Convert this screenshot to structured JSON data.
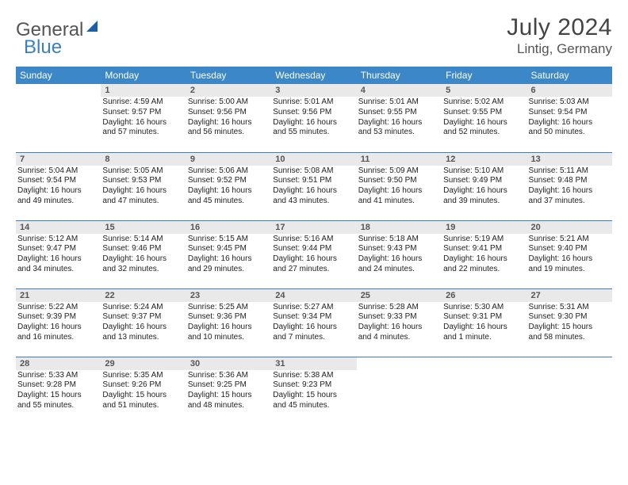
{
  "brand": {
    "part1": "General",
    "part2": "Blue"
  },
  "title": "July 2024",
  "location": "Lintig, Germany",
  "header_bg": "#3b87c8",
  "border_color": "#3b7fbf",
  "daynum_bg": "#e9e9e9",
  "weekdays": [
    "Sunday",
    "Monday",
    "Tuesday",
    "Wednesday",
    "Thursday",
    "Friday",
    "Saturday"
  ],
  "weeks": [
    [
      null,
      {
        "n": "1",
        "sr": "Sunrise: 4:59 AM",
        "ss": "Sunset: 9:57 PM",
        "d1": "Daylight: 16 hours",
        "d2": "and 57 minutes."
      },
      {
        "n": "2",
        "sr": "Sunrise: 5:00 AM",
        "ss": "Sunset: 9:56 PM",
        "d1": "Daylight: 16 hours",
        "d2": "and 56 minutes."
      },
      {
        "n": "3",
        "sr": "Sunrise: 5:01 AM",
        "ss": "Sunset: 9:56 PM",
        "d1": "Daylight: 16 hours",
        "d2": "and 55 minutes."
      },
      {
        "n": "4",
        "sr": "Sunrise: 5:01 AM",
        "ss": "Sunset: 9:55 PM",
        "d1": "Daylight: 16 hours",
        "d2": "and 53 minutes."
      },
      {
        "n": "5",
        "sr": "Sunrise: 5:02 AM",
        "ss": "Sunset: 9:55 PM",
        "d1": "Daylight: 16 hours",
        "d2": "and 52 minutes."
      },
      {
        "n": "6",
        "sr": "Sunrise: 5:03 AM",
        "ss": "Sunset: 9:54 PM",
        "d1": "Daylight: 16 hours",
        "d2": "and 50 minutes."
      }
    ],
    [
      {
        "n": "7",
        "sr": "Sunrise: 5:04 AM",
        "ss": "Sunset: 9:54 PM",
        "d1": "Daylight: 16 hours",
        "d2": "and 49 minutes."
      },
      {
        "n": "8",
        "sr": "Sunrise: 5:05 AM",
        "ss": "Sunset: 9:53 PM",
        "d1": "Daylight: 16 hours",
        "d2": "and 47 minutes."
      },
      {
        "n": "9",
        "sr": "Sunrise: 5:06 AM",
        "ss": "Sunset: 9:52 PM",
        "d1": "Daylight: 16 hours",
        "d2": "and 45 minutes."
      },
      {
        "n": "10",
        "sr": "Sunrise: 5:08 AM",
        "ss": "Sunset: 9:51 PM",
        "d1": "Daylight: 16 hours",
        "d2": "and 43 minutes."
      },
      {
        "n": "11",
        "sr": "Sunrise: 5:09 AM",
        "ss": "Sunset: 9:50 PM",
        "d1": "Daylight: 16 hours",
        "d2": "and 41 minutes."
      },
      {
        "n": "12",
        "sr": "Sunrise: 5:10 AM",
        "ss": "Sunset: 9:49 PM",
        "d1": "Daylight: 16 hours",
        "d2": "and 39 minutes."
      },
      {
        "n": "13",
        "sr": "Sunrise: 5:11 AM",
        "ss": "Sunset: 9:48 PM",
        "d1": "Daylight: 16 hours",
        "d2": "and 37 minutes."
      }
    ],
    [
      {
        "n": "14",
        "sr": "Sunrise: 5:12 AM",
        "ss": "Sunset: 9:47 PM",
        "d1": "Daylight: 16 hours",
        "d2": "and 34 minutes."
      },
      {
        "n": "15",
        "sr": "Sunrise: 5:14 AM",
        "ss": "Sunset: 9:46 PM",
        "d1": "Daylight: 16 hours",
        "d2": "and 32 minutes."
      },
      {
        "n": "16",
        "sr": "Sunrise: 5:15 AM",
        "ss": "Sunset: 9:45 PM",
        "d1": "Daylight: 16 hours",
        "d2": "and 29 minutes."
      },
      {
        "n": "17",
        "sr": "Sunrise: 5:16 AM",
        "ss": "Sunset: 9:44 PM",
        "d1": "Daylight: 16 hours",
        "d2": "and 27 minutes."
      },
      {
        "n": "18",
        "sr": "Sunrise: 5:18 AM",
        "ss": "Sunset: 9:43 PM",
        "d1": "Daylight: 16 hours",
        "d2": "and 24 minutes."
      },
      {
        "n": "19",
        "sr": "Sunrise: 5:19 AM",
        "ss": "Sunset: 9:41 PM",
        "d1": "Daylight: 16 hours",
        "d2": "and 22 minutes."
      },
      {
        "n": "20",
        "sr": "Sunrise: 5:21 AM",
        "ss": "Sunset: 9:40 PM",
        "d1": "Daylight: 16 hours",
        "d2": "and 19 minutes."
      }
    ],
    [
      {
        "n": "21",
        "sr": "Sunrise: 5:22 AM",
        "ss": "Sunset: 9:39 PM",
        "d1": "Daylight: 16 hours",
        "d2": "and 16 minutes."
      },
      {
        "n": "22",
        "sr": "Sunrise: 5:24 AM",
        "ss": "Sunset: 9:37 PM",
        "d1": "Daylight: 16 hours",
        "d2": "and 13 minutes."
      },
      {
        "n": "23",
        "sr": "Sunrise: 5:25 AM",
        "ss": "Sunset: 9:36 PM",
        "d1": "Daylight: 16 hours",
        "d2": "and 10 minutes."
      },
      {
        "n": "24",
        "sr": "Sunrise: 5:27 AM",
        "ss": "Sunset: 9:34 PM",
        "d1": "Daylight: 16 hours",
        "d2": "and 7 minutes."
      },
      {
        "n": "25",
        "sr": "Sunrise: 5:28 AM",
        "ss": "Sunset: 9:33 PM",
        "d1": "Daylight: 16 hours",
        "d2": "and 4 minutes."
      },
      {
        "n": "26",
        "sr": "Sunrise: 5:30 AM",
        "ss": "Sunset: 9:31 PM",
        "d1": "Daylight: 16 hours",
        "d2": "and 1 minute."
      },
      {
        "n": "27",
        "sr": "Sunrise: 5:31 AM",
        "ss": "Sunset: 9:30 PM",
        "d1": "Daylight: 15 hours",
        "d2": "and 58 minutes."
      }
    ],
    [
      {
        "n": "28",
        "sr": "Sunrise: 5:33 AM",
        "ss": "Sunset: 9:28 PM",
        "d1": "Daylight: 15 hours",
        "d2": "and 55 minutes."
      },
      {
        "n": "29",
        "sr": "Sunrise: 5:35 AM",
        "ss": "Sunset: 9:26 PM",
        "d1": "Daylight: 15 hours",
        "d2": "and 51 minutes."
      },
      {
        "n": "30",
        "sr": "Sunrise: 5:36 AM",
        "ss": "Sunset: 9:25 PM",
        "d1": "Daylight: 15 hours",
        "d2": "and 48 minutes."
      },
      {
        "n": "31",
        "sr": "Sunrise: 5:38 AM",
        "ss": "Sunset: 9:23 PM",
        "d1": "Daylight: 15 hours",
        "d2": "and 45 minutes."
      },
      null,
      null,
      null
    ]
  ]
}
